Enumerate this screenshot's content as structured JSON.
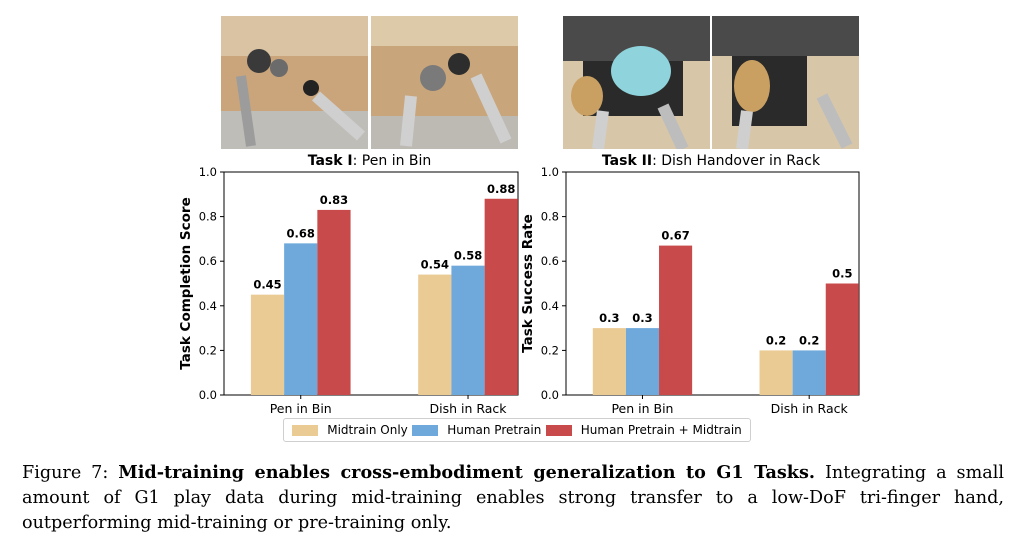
{
  "colors": {
    "midtrain": "#EBCB94",
    "human": "#6FA9DC",
    "both": "#C84A4B"
  },
  "photos": [
    {
      "name": "pen-in-bin-photo-1"
    },
    {
      "name": "pen-in-bin-photo-2"
    },
    {
      "name": "dish-rack-photo-1"
    },
    {
      "name": "dish-rack-photo-2"
    }
  ],
  "tasks": [
    {
      "num": "Task I",
      "rest": ": Pen in Bin"
    },
    {
      "num": "Task II",
      "rest": ": Dish Handover in Rack"
    }
  ],
  "chart_data": [
    {
      "type": "bar",
      "ylabel": "Task Completion Score",
      "ylim": [
        0,
        1.0
      ],
      "yticks": [
        "0.0",
        "0.2",
        "0.4",
        "0.6",
        "0.8",
        "1.0"
      ],
      "categories": [
        "Pen in Bin",
        "Dish in Rack"
      ],
      "series": [
        {
          "name": "Midtrain Only",
          "values": [
            0.45,
            0.54
          ],
          "labels": [
            "0.45",
            "0.54"
          ]
        },
        {
          "name": "Human Pretrain",
          "values": [
            0.68,
            0.58
          ],
          "labels": [
            "0.68",
            "0.58"
          ]
        },
        {
          "name": "Human Pretrain + Midtrain",
          "values": [
            0.83,
            0.88
          ],
          "labels": [
            "0.83",
            "0.88"
          ]
        }
      ]
    },
    {
      "type": "bar",
      "ylabel": "Task Success Rate",
      "ylim": [
        0,
        1.0
      ],
      "yticks": [
        "0.0",
        "0.2",
        "0.4",
        "0.6",
        "0.8",
        "1.0"
      ],
      "categories": [
        "Pen in Bin",
        "Dish in Rack"
      ],
      "series": [
        {
          "name": "Midtrain Only",
          "values": [
            0.3,
            0.2
          ],
          "labels": [
            "0.3",
            "0.2"
          ]
        },
        {
          "name": "Human Pretrain",
          "values": [
            0.3,
            0.2
          ],
          "labels": [
            "0.3",
            "0.2"
          ]
        },
        {
          "name": "Human Pretrain + Midtrain",
          "values": [
            0.67,
            0.5
          ],
          "labels": [
            "0.67",
            "0.5"
          ]
        }
      ]
    }
  ],
  "legend": [
    "Midtrain Only",
    "Human Pretrain",
    "Human Pretrain + Midtrain"
  ],
  "caption": {
    "prefix": "Figure 7: ",
    "bold": "Mid-training enables cross-embodiment generalization to G1 Tasks.",
    "rest": " Integrating a small amount of G1 play data during mid-training enables strong transfer to a low-DoF tri-finger hand, outperforming mid-training or pre-training only."
  }
}
